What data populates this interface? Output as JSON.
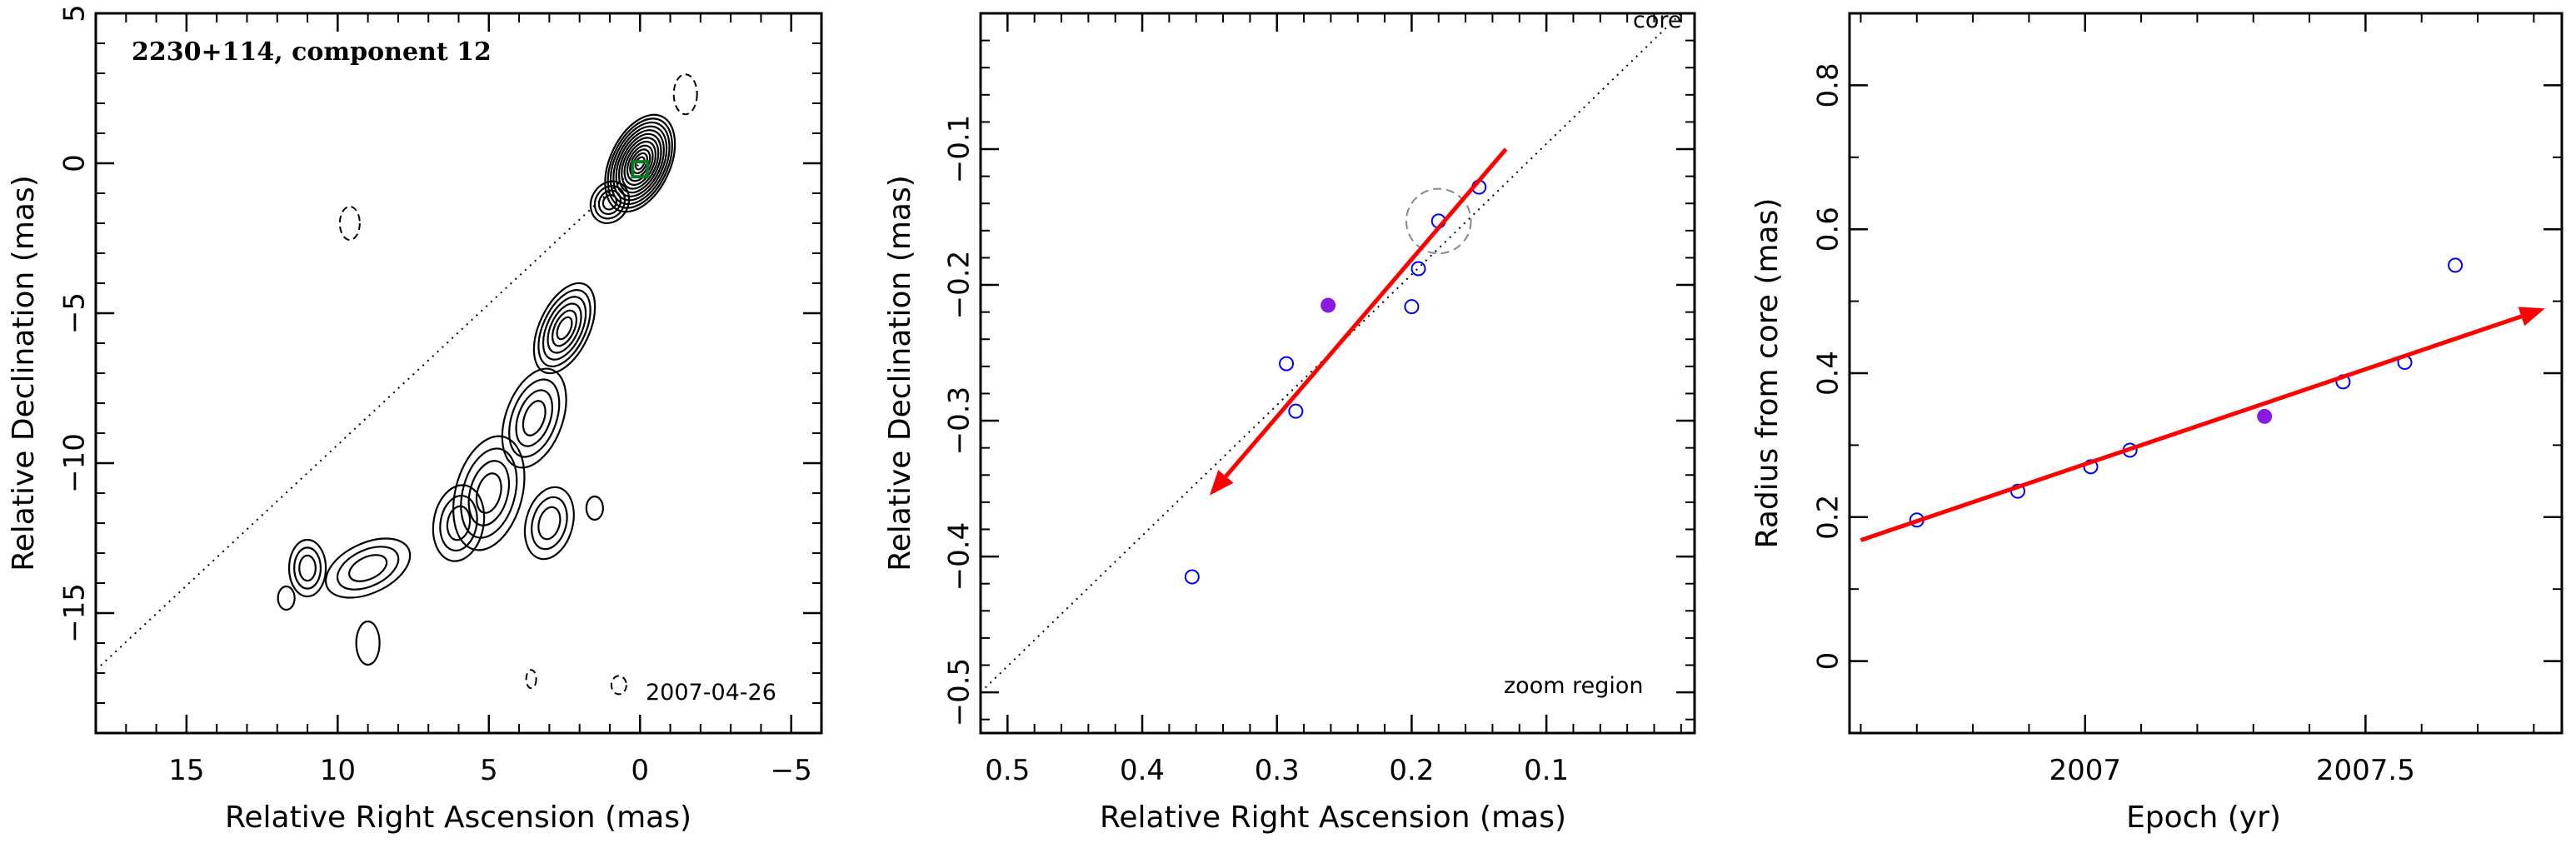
{
  "colors": {
    "arrow": "#ff0000",
    "marker": "#0000ff",
    "highlight": "#8a1be2",
    "axis": "#000000",
    "core_box": "#0a7a20"
  },
  "chart_data": [
    {
      "type": "contour",
      "title": "2230+114, component 12",
      "date_label": "2007-04-26",
      "xlabel": "Relative Right Ascension (mas)",
      "ylabel": "Relative Declination (mas)",
      "xlim": [
        18,
        -6
      ],
      "ylim": [
        -19,
        5
      ],
      "xticks": [
        15,
        10,
        5,
        0,
        -5
      ],
      "yticks": [
        5,
        0,
        -5,
        -10,
        -15
      ],
      "dotted_line": [
        [
          18,
          -16.9
        ],
        [
          0,
          0
        ]
      ],
      "core_marker": [
        0,
        -0.2
      ]
    },
    {
      "type": "scatter",
      "xlabel": "Relative Right Ascension (mas)",
      "ylabel": "Relative Declination (mas)",
      "xlim": [
        0.52,
        -0.01
      ],
      "ylim": [
        -0.53,
        0.0
      ],
      "xticks": [
        0.5,
        0.4,
        0.3,
        0.2,
        0.1
      ],
      "yticks": [
        -0.1,
        -0.2,
        -0.3,
        -0.4,
        -0.5
      ],
      "core_label": "core",
      "region_label": "zoom region",
      "points": [
        {
          "x": 0.363,
          "y": -0.415
        },
        {
          "x": 0.293,
          "y": -0.258
        },
        {
          "x": 0.286,
          "y": -0.293
        },
        {
          "x": 0.2,
          "y": -0.216
        },
        {
          "x": 0.195,
          "y": -0.188
        },
        {
          "x": 0.18,
          "y": -0.153
        },
        {
          "x": 0.15,
          "y": -0.128
        }
      ],
      "highlight_point": {
        "x": 0.262,
        "y": -0.215
      },
      "error_circle": {
        "x": 0.18,
        "y": -0.153,
        "r": 0.024
      },
      "arrow": {
        "from": [
          0.13,
          -0.1
        ],
        "to": [
          0.35,
          -0.355
        ]
      },
      "dotted_line": [
        [
          0.52,
          -0.5
        ],
        [
          0.0,
          0.0
        ]
      ]
    },
    {
      "type": "scatter",
      "xlabel": "Epoch (yr)",
      "ylabel": "Radius from core (mas)",
      "xlim": [
        2006.58,
        2007.85
      ],
      "ylim": [
        -0.1,
        0.9
      ],
      "xticks": [
        2007,
        2007.5
      ],
      "yticks": [
        0,
        0.2,
        0.4,
        0.6,
        0.8
      ],
      "points": [
        {
          "x": 2006.7,
          "y": 0.196
        },
        {
          "x": 2006.88,
          "y": 0.236
        },
        {
          "x": 2007.01,
          "y": 0.27
        },
        {
          "x": 2007.08,
          "y": 0.293
        },
        {
          "x": 2007.46,
          "y": 0.388
        },
        {
          "x": 2007.57,
          "y": 0.415
        },
        {
          "x": 2007.66,
          "y": 0.55
        }
      ],
      "highlight_point": {
        "x": 2007.32,
        "y": 0.34
      },
      "arrow": {
        "from": [
          2006.6,
          0.168
        ],
        "to": [
          2007.82,
          0.49
        ]
      }
    }
  ]
}
